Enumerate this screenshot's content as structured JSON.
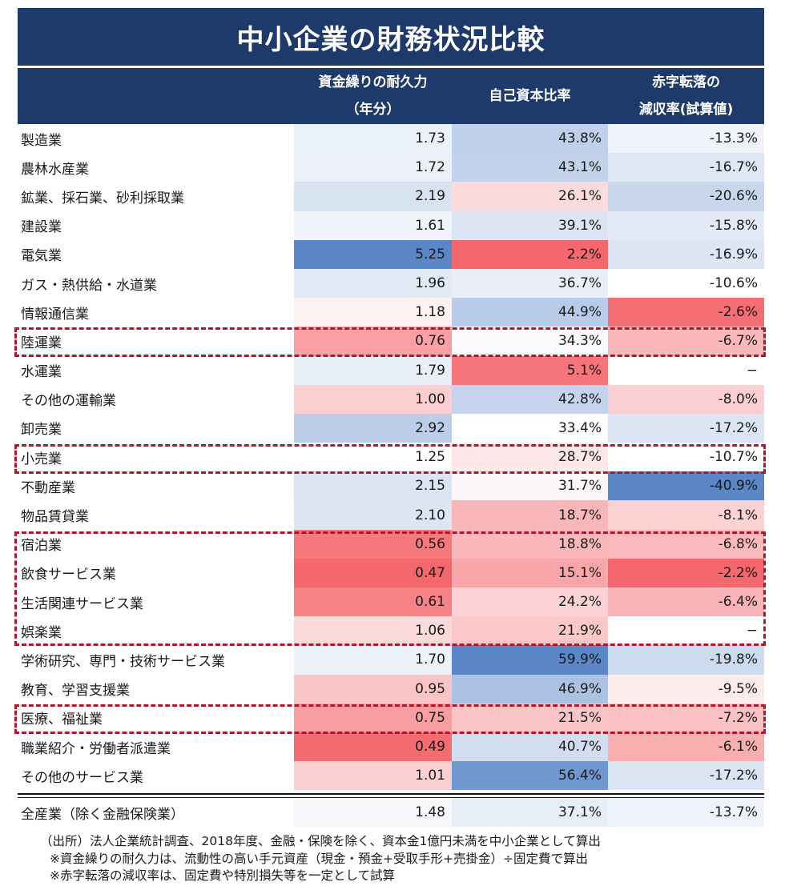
{
  "title": "中小企業の財務状況比較",
  "header": {
    "col1_line1": "資金繰りの耐久力",
    "col1_line2": "（年分）",
    "col2": "自己資本比率",
    "col3_line1": "赤字転落の",
    "col3_line2": "減収率(試算値)"
  },
  "rows": [
    {
      "label": "製造業",
      "c1": "1.73",
      "c2": "43.8%",
      "c3": "-13.3%"
    },
    {
      "label": "農林水産業",
      "c1": "1.72",
      "c2": "43.1%",
      "c3": "-16.7%"
    },
    {
      "label": "鉱業、採石業、砂利採取業",
      "c1": "2.19",
      "c2": "26.1%",
      "c3": "-20.6%"
    },
    {
      "label": "建設業",
      "c1": "1.61",
      "c2": "39.1%",
      "c3": "-15.8%"
    },
    {
      "label": "電気業",
      "c1": "5.25",
      "c2": "2.2%",
      "c3": "-16.9%"
    },
    {
      "label": "ガス・熱供給・水道業",
      "c1": "1.96",
      "c2": "36.7%",
      "c3": "-10.6%"
    },
    {
      "label": "情報通信業",
      "c1": "1.18",
      "c2": "44.9%",
      "c3": "-2.6%"
    },
    {
      "label": "陸運業",
      "c1": "0.76",
      "c2": "34.3%",
      "c3": "-6.7%"
    },
    {
      "label": "水運業",
      "c1": "1.79",
      "c2": "5.1%",
      "c3": "−"
    },
    {
      "label": "その他の運輸業",
      "c1": "1.00",
      "c2": "42.8%",
      "c3": "-8.0%"
    },
    {
      "label": "卸売業",
      "c1": "2.92",
      "c2": "33.4%",
      "c3": "-17.2%"
    },
    {
      "label": "小売業",
      "c1": "1.25",
      "c2": "28.7%",
      "c3": "-10.7%"
    },
    {
      "label": "不動産業",
      "c1": "2.15",
      "c2": "31.7%",
      "c3": "-40.9%"
    },
    {
      "label": "物品賃貸業",
      "c1": "2.10",
      "c2": "18.7%",
      "c3": "-8.1%"
    },
    {
      "label": "宿泊業",
      "c1": "0.56",
      "c2": "18.8%",
      "c3": "-6.8%"
    },
    {
      "label": "飲食サービス業",
      "c1": "0.47",
      "c2": "15.1%",
      "c3": "-2.2%"
    },
    {
      "label": "生活関連サービス業",
      "c1": "0.61",
      "c2": "24.2%",
      "c3": "-6.4%"
    },
    {
      "label": "娯楽業",
      "c1": "1.06",
      "c2": "21.9%",
      "c3": "−"
    },
    {
      "label": "学術研究、専門・技術サービス業",
      "c1": "1.70",
      "c2": "59.9%",
      "c3": "-19.8%"
    },
    {
      "label": "教育、学習支援業",
      "c1": "0.95",
      "c2": "46.9%",
      "c3": "-9.5%"
    },
    {
      "label": "医療、福祉業",
      "c1": "0.75",
      "c2": "21.5%",
      "c3": "-7.2%"
    },
    {
      "label": "職業紹介・労働者派遣業",
      "c1": "0.49",
      "c2": "40.7%",
      "c3": "-6.1%"
    },
    {
      "label": "その他のサービス業",
      "c1": "1.01",
      "c2": "56.4%",
      "c3": "-17.2%"
    }
  ],
  "total": {
    "label": "全産業（除く金融保険業）",
    "c1": "1.48",
    "c2": "37.1%",
    "c3": "-13.7%"
  },
  "notes": [
    "（出所）法人企業統計調査、2018年度、金融・保険を除く、資本金1億円未満を中小企業として算出",
    "※資金繰りの耐久力は、流動性の高い手元資産（現金・預金+受取手形+売掛金）÷固定費で算出",
    "※赤字転落の減収率は、固定費や特別損失等を一定として試算"
  ],
  "colors": {
    "header_bg": "#1e3a6b",
    "highlight_border": "#b3152b",
    "scale_high": "#5b87c9",
    "scale_low": "#f4676c"
  }
}
